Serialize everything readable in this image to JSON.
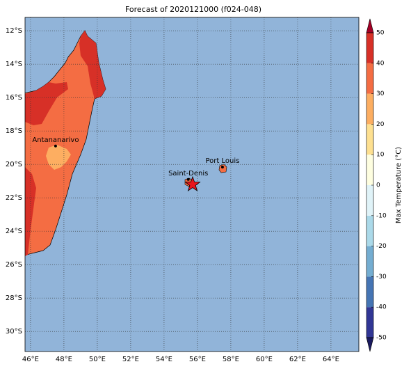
{
  "map": {
    "title": "Forecast of 2020121000 (f024-048)",
    "xlim": [
      45.67,
      65.67
    ],
    "ylim": [
      -31.2,
      -11.2
    ],
    "lon_ticks": [
      {
        "value": 46,
        "label": "46°E"
      },
      {
        "value": 48,
        "label": "48°E"
      },
      {
        "value": 50,
        "label": "50°E"
      },
      {
        "value": 52,
        "label": "52°E"
      },
      {
        "value": 54,
        "label": "54°E"
      },
      {
        "value": 56,
        "label": "56°E"
      },
      {
        "value": 58,
        "label": "58°E"
      },
      {
        "value": 60,
        "label": "60°E"
      },
      {
        "value": 62,
        "label": "62°E"
      },
      {
        "value": 64,
        "label": "64°E"
      }
    ],
    "lat_ticks": [
      {
        "value": -12,
        "label": "12°S"
      },
      {
        "value": -14,
        "label": "14°S"
      },
      {
        "value": -16,
        "label": "16°S"
      },
      {
        "value": -18,
        "label": "18°S"
      },
      {
        "value": -20,
        "label": "20°S"
      },
      {
        "value": -22,
        "label": "22°S"
      },
      {
        "value": -24,
        "label": "24°S"
      },
      {
        "value": -26,
        "label": "26°S"
      },
      {
        "value": -28,
        "label": "28°S"
      },
      {
        "value": -30,
        "label": "30°S"
      }
    ],
    "cities": [
      {
        "name": "Antananarivo",
        "lon": 47.5,
        "lat": -18.9
      },
      {
        "name": "Saint-Denis",
        "lon": 55.45,
        "lat": -20.9
      },
      {
        "name": "Port Louis",
        "lon": 57.5,
        "lat": -20.16
      }
    ],
    "colorbar": {
      "label": "Max Temperature (°C)",
      "ticks": [
        -50,
        -40,
        -30,
        -20,
        -10,
        0,
        10,
        20,
        30,
        40,
        50
      ],
      "colors": [
        "#313695",
        "#4575b4",
        "#74add1",
        "#abd9e9",
        "#e0f3f8",
        "#fefee0",
        "#fee090",
        "#fdae61",
        "#f46d43",
        "#d73027"
      ],
      "under_color": "#1a1a60",
      "over_color": "#a50026"
    }
  }
}
